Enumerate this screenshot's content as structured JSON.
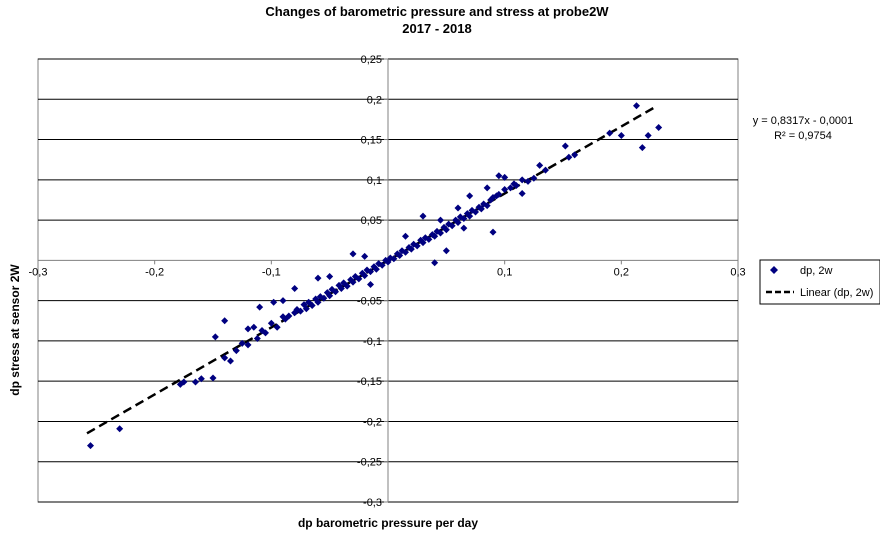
{
  "chart_data": {
    "type": "scatter",
    "title": "Changes of barometric pressure and stress at probe2W",
    "subtitle": "2017 - 2018",
    "xlabel": "dp barometric pressure per day",
    "ylabel": "dp stress at sensor  2W",
    "xlim": [
      -0.3,
      0.3
    ],
    "ylim": [
      -0.3,
      0.25
    ],
    "x_ticks": [
      -0.3,
      -0.2,
      -0.1,
      0.1,
      0.2,
      0.3
    ],
    "x_tick_labels": [
      "-0,3",
      "-0,2",
      "-0,1",
      "0,1",
      "0,2",
      "0,3"
    ],
    "y_ticks": [
      0.25,
      0.2,
      0.15,
      0.1,
      0.05,
      -0.05,
      -0.1,
      -0.15,
      -0.2,
      -0.25,
      -0.3
    ],
    "y_tick_labels": [
      "0,25",
      "0,2",
      "0,15",
      "0,1",
      "0,05",
      "-0,05",
      "-0,1",
      "-0,15",
      "-0,2",
      "-0,25",
      "-0,3"
    ],
    "grid": "horizontal",
    "legend_position": "right",
    "series": [
      {
        "name": "dp, 2w",
        "kind": "scatter",
        "marker": "diamond",
        "color": "#000080",
        "points": [
          [
            -0.255,
            -0.23
          ],
          [
            -0.23,
            -0.209
          ],
          [
            -0.178,
            -0.154
          ],
          [
            -0.175,
            -0.151
          ],
          [
            -0.165,
            -0.151
          ],
          [
            -0.16,
            -0.147
          ],
          [
            -0.15,
            -0.146
          ],
          [
            -0.148,
            -0.095
          ],
          [
            -0.14,
            -0.121
          ],
          [
            -0.135,
            -0.125
          ],
          [
            -0.13,
            -0.112
          ],
          [
            -0.125,
            -0.103
          ],
          [
            -0.12,
            -0.105
          ],
          [
            -0.115,
            -0.083
          ],
          [
            -0.112,
            -0.097
          ],
          [
            -0.108,
            -0.087
          ],
          [
            -0.105,
            -0.09
          ],
          [
            -0.1,
            -0.078
          ],
          [
            -0.098,
            -0.052
          ],
          [
            -0.095,
            -0.083
          ],
          [
            -0.09,
            -0.07
          ],
          [
            -0.088,
            -0.073
          ],
          [
            -0.085,
            -0.069
          ],
          [
            -0.08,
            -0.065
          ],
          [
            -0.078,
            -0.061
          ],
          [
            -0.075,
            -0.063
          ],
          [
            -0.072,
            -0.055
          ],
          [
            -0.07,
            -0.06
          ],
          [
            -0.068,
            -0.052
          ],
          [
            -0.065,
            -0.056
          ],
          [
            -0.062,
            -0.048
          ],
          [
            -0.06,
            -0.052
          ],
          [
            -0.058,
            -0.045
          ],
          [
            -0.055,
            -0.047
          ],
          [
            -0.052,
            -0.04
          ],
          [
            -0.05,
            -0.044
          ],
          [
            -0.048,
            -0.036
          ],
          [
            -0.045,
            -0.039
          ],
          [
            -0.042,
            -0.031
          ],
          [
            -0.04,
            -0.035
          ],
          [
            -0.038,
            -0.028
          ],
          [
            -0.035,
            -0.032
          ],
          [
            -0.032,
            -0.024
          ],
          [
            -0.03,
            -0.027
          ],
          [
            -0.028,
            -0.02
          ],
          [
            -0.025,
            -0.023
          ],
          [
            -0.022,
            -0.016
          ],
          [
            -0.02,
            -0.019
          ],
          [
            -0.018,
            -0.012
          ],
          [
            -0.015,
            -0.014
          ],
          [
            -0.012,
            -0.008
          ],
          [
            -0.01,
            -0.011
          ],
          [
            -0.008,
            -0.004
          ],
          [
            -0.005,
            -0.006
          ],
          [
            -0.002,
            0.0
          ],
          [
            0.0,
            -0.002
          ],
          [
            0.002,
            0.003
          ],
          [
            0.005,
            0.002
          ],
          [
            0.008,
            0.008
          ],
          [
            0.01,
            0.006
          ],
          [
            0.012,
            0.012
          ],
          [
            0.015,
            0.01
          ],
          [
            0.018,
            0.016
          ],
          [
            0.02,
            0.014
          ],
          [
            0.022,
            0.02
          ],
          [
            0.025,
            0.018
          ],
          [
            0.028,
            0.025
          ],
          [
            0.03,
            0.022
          ],
          [
            0.032,
            0.028
          ],
          [
            0.035,
            0.026
          ],
          [
            0.038,
            0.032
          ],
          [
            0.04,
            0.03
          ],
          [
            0.042,
            0.036
          ],
          [
            0.045,
            0.034
          ],
          [
            0.048,
            0.041
          ],
          [
            0.05,
            0.038
          ],
          [
            0.052,
            0.045
          ],
          [
            0.055,
            0.043
          ],
          [
            0.058,
            0.05
          ],
          [
            0.06,
            0.047
          ],
          [
            0.062,
            0.054
          ],
          [
            0.065,
            0.052
          ],
          [
            0.068,
            0.058
          ],
          [
            0.07,
            0.055
          ],
          [
            0.072,
            0.062
          ],
          [
            0.075,
            0.06
          ],
          [
            0.078,
            0.066
          ],
          [
            0.08,
            0.064
          ],
          [
            0.082,
            0.07
          ],
          [
            0.085,
            0.068
          ],
          [
            0.088,
            0.075
          ],
          [
            0.09,
            0.078
          ],
          [
            0.093,
            0.08
          ],
          [
            0.095,
            0.082
          ],
          [
            0.1,
            0.088
          ],
          [
            0.105,
            0.09
          ],
          [
            0.108,
            0.095
          ],
          [
            0.11,
            0.093
          ],
          [
            0.115,
            0.1
          ],
          [
            0.12,
            0.098
          ],
          [
            0.125,
            0.102
          ],
          [
            0.13,
            0.118
          ],
          [
            0.135,
            0.112
          ],
          [
            0.152,
            0.142
          ],
          [
            0.155,
            0.128
          ],
          [
            0.16,
            0.131
          ],
          [
            0.19,
            0.158
          ],
          [
            0.2,
            0.155
          ],
          [
            0.213,
            0.192
          ],
          [
            0.218,
            0.14
          ],
          [
            0.223,
            0.155
          ],
          [
            0.232,
            0.165
          ],
          [
            0.09,
            0.035
          ],
          [
            0.05,
            0.012
          ],
          [
            -0.06,
            -0.022
          ],
          [
            -0.14,
            -0.075
          ],
          [
            -0.11,
            -0.058
          ],
          [
            -0.08,
            -0.035
          ],
          [
            0.03,
            0.055
          ],
          [
            0.07,
            0.08
          ],
          [
            0.095,
            0.105
          ],
          [
            0.04,
            -0.003
          ],
          [
            -0.03,
            0.008
          ],
          [
            0.06,
            0.065
          ],
          [
            0.1,
            0.103
          ],
          [
            0.115,
            0.083
          ],
          [
            -0.09,
            -0.05
          ],
          [
            -0.02,
            0.005
          ],
          [
            0.015,
            0.03
          ],
          [
            0.045,
            0.05
          ],
          [
            -0.05,
            -0.02
          ],
          [
            -0.12,
            -0.085
          ],
          [
            0.085,
            0.09
          ],
          [
            0.065,
            0.04
          ],
          [
            -0.015,
            -0.03
          ]
        ]
      },
      {
        "name": "Linear (dp, 2w)",
        "kind": "trendline",
        "style": "dashed",
        "color": "#000000",
        "slope": 0.8317,
        "intercept": -0.0001,
        "x_range": [
          -0.258,
          0.23
        ]
      }
    ],
    "annotations": [
      "y = 0,8317x - 0,0001",
      "R² = 0,9754"
    ],
    "colors": {
      "axis": "#808080",
      "grid": "#000000",
      "marker": "#000080",
      "trend": "#000000"
    }
  }
}
